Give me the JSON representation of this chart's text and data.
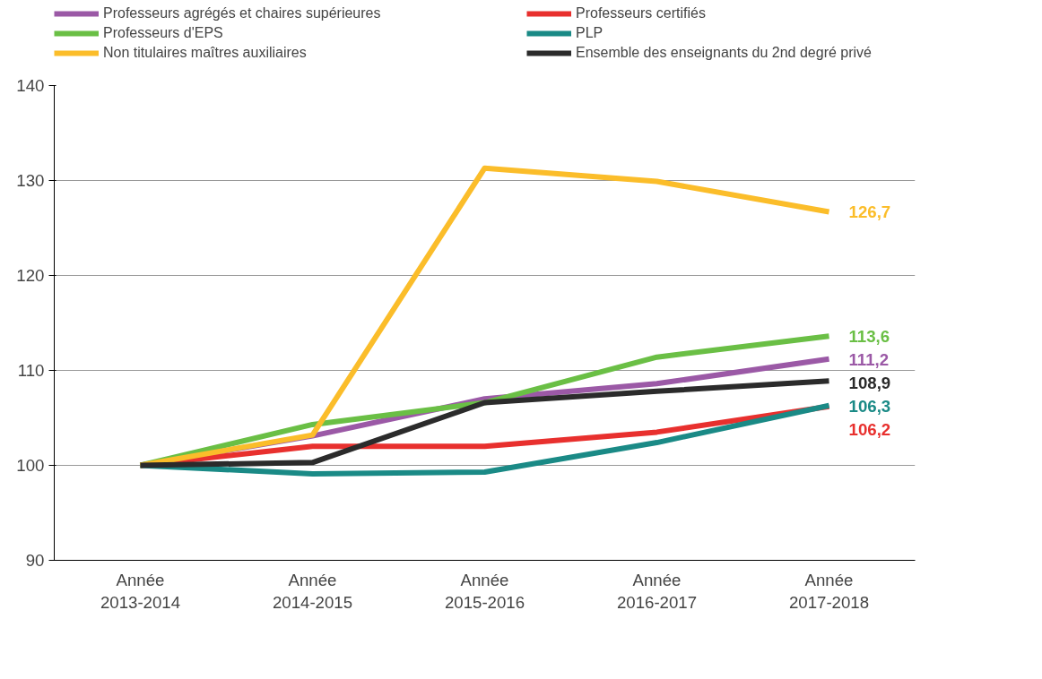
{
  "chart_data": {
    "type": "line",
    "categories": [
      "Année\n2013-2014",
      "Année\n2014-2015",
      "Année\n2015-2016",
      "Année\n2016-2017",
      "Année\n2017-2018"
    ],
    "series": [
      {
        "name": "Professeurs agrégés et chaires supérieures",
        "color": "#9b59a6",
        "values": [
          100,
          103.1,
          107.0,
          108.6,
          111.2
        ],
        "value_labels": [
          null,
          null,
          null,
          null,
          "111,2"
        ]
      },
      {
        "name": "Professeurs certifiés",
        "color": "#e8302e",
        "values": [
          100,
          102.0,
          102.0,
          103.5,
          106.2
        ],
        "value_labels": [
          null,
          null,
          null,
          null,
          "106,2"
        ]
      },
      {
        "name": "Professeurs d'EPS",
        "color": "#6abf45",
        "values": [
          100,
          104.3,
          106.6,
          111.4,
          113.6
        ],
        "value_labels": [
          null,
          null,
          null,
          null,
          "113,6"
        ]
      },
      {
        "name": "PLP",
        "color": "#1a8a86",
        "values": [
          100,
          99.1,
          99.3,
          102.4,
          106.3
        ],
        "value_labels": [
          null,
          null,
          null,
          null,
          "106,3"
        ]
      },
      {
        "name": "Non titulaires maîtres auxiliaires",
        "color": "#fbbd2a",
        "values": [
          100,
          103.2,
          131.3,
          129.9,
          126.7
        ],
        "value_labels": [
          null,
          null,
          null,
          null,
          "126,7"
        ]
      },
      {
        "name": "Ensemble des enseignants du 2nd degré privé",
        "color": "#2b2b2b",
        "values": [
          100,
          100.3,
          106.6,
          107.8,
          108.9
        ],
        "value_labels": [
          null,
          null,
          null,
          null,
          "108,9"
        ]
      }
    ],
    "ylim": [
      90,
      140
    ],
    "yticks": [
      90,
      100,
      110,
      120,
      130,
      140
    ],
    "grid": "y",
    "legend": "top",
    "marker": "none",
    "line_style": "solid"
  }
}
